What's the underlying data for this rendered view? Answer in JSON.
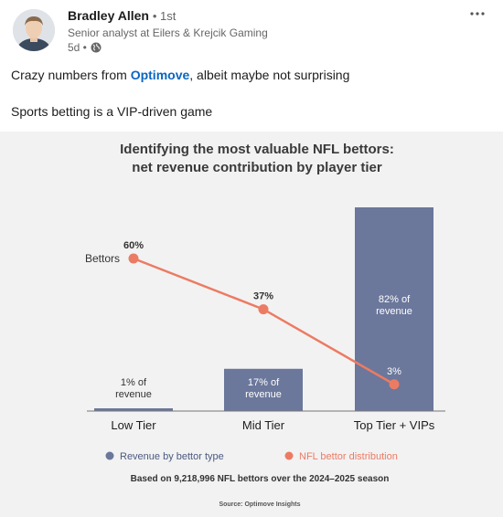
{
  "post": {
    "author": {
      "name": "Bradley Allen",
      "connection_degree": "• 1st",
      "headline": "Senior analyst at Eilers & Krejcik Gaming"
    },
    "time_ago": "5d •",
    "visibility_icon": "globe-icon",
    "more_icon": "more-horizontal-icon",
    "text": {
      "line1_before": "Crazy numbers from ",
      "mention": "Optimove",
      "line1_after": ", albeit maybe not surprising",
      "line2": "Sports betting is a VIP-driven game"
    }
  },
  "chart_data": {
    "type": "bar",
    "title_line1": "Identifying the most valuable NFL bettors:",
    "title_line2": "net revenue contribution by player tier",
    "categories": [
      "Low Tier",
      "Mid Tier",
      "Top Tier + VIPs"
    ],
    "series": [
      {
        "name": "Revenue by bettor type",
        "type": "bar",
        "color": "#6b779b",
        "values": [
          1,
          17,
          82
        ],
        "labels": [
          [
            "1% of",
            "revenue"
          ],
          [
            "17% of",
            "revenue"
          ],
          [
            "82% of",
            "revenue"
          ]
        ]
      },
      {
        "name": "NFL bettor distribution",
        "type": "line",
        "color": "#ec7b63",
        "values": [
          60,
          37,
          3
        ],
        "labels": [
          "60%",
          "37%",
          "3%"
        ]
      }
    ],
    "annotation": "Bettors",
    "ylim": [
      0,
      100
    ],
    "footnote": "Based on 9,218,996 NFL bettors over the 2024–2025 season",
    "source": "Source: Optimove Insights",
    "colors": {
      "title": "#3a3a3a",
      "axis": "#555555",
      "background": "#f2f2f2"
    }
  }
}
